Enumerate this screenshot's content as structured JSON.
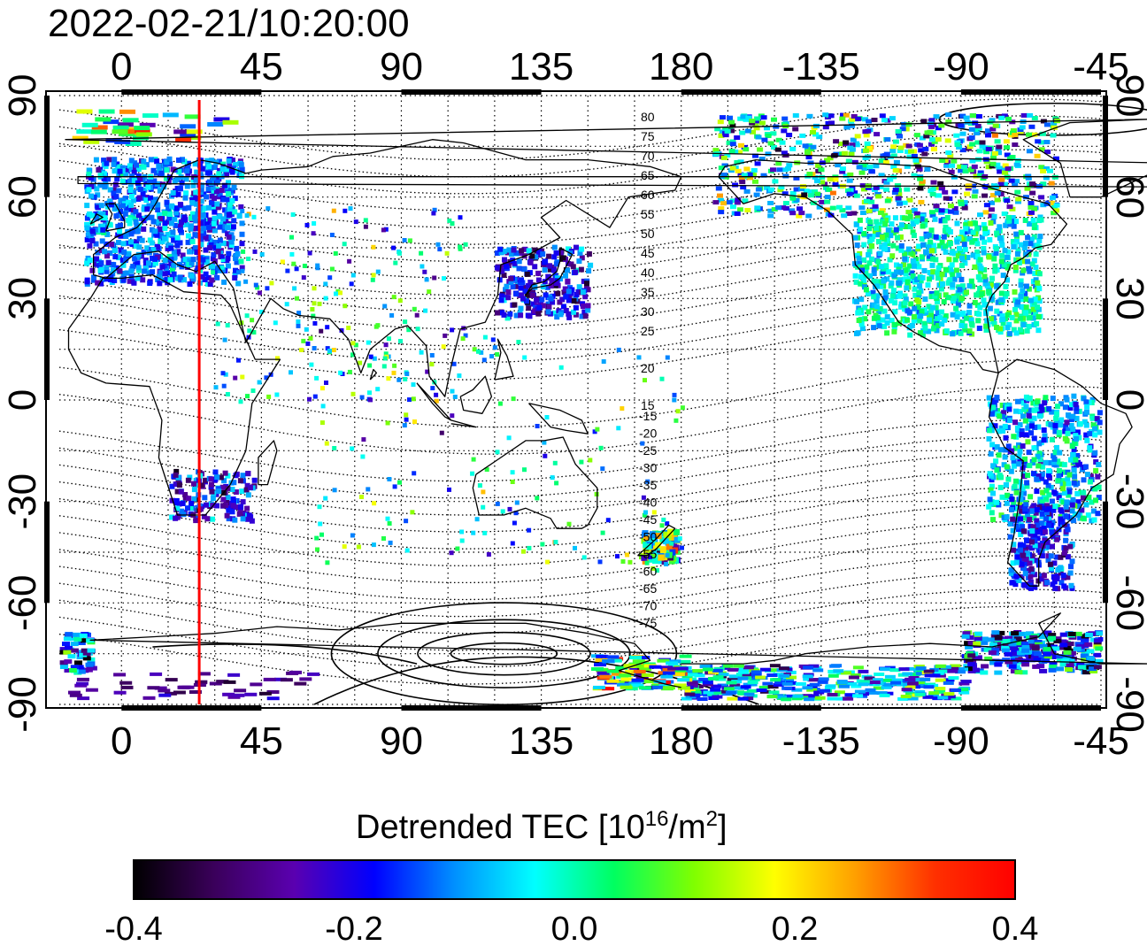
{
  "title": "2022-02-21/10:20:00",
  "map": {
    "lon_ticks": [
      "0",
      "45",
      "90",
      "135",
      "180",
      "-135",
      "-90",
      "-45"
    ],
    "lat_ticks": [
      "90",
      "60",
      "30",
      "0",
      "-30",
      "-60",
      "-90"
    ],
    "lon_range": [
      -20,
      315
    ],
    "lat_range": [
      -90,
      90
    ],
    "grid": "dotted, 15 degree spacing",
    "marker_line": {
      "longitude": 25,
      "color": "#ff0000"
    },
    "magnetic_labels_north": [
      "80",
      "75",
      "70",
      "65",
      "60",
      "55",
      "50",
      "45",
      "40",
      "35",
      "30",
      "25",
      "20",
      "15"
    ],
    "magnetic_labels_south": [
      "-15",
      "-20",
      "-25",
      "-30",
      "-35",
      "-40",
      "-45",
      "-50",
      "-55",
      "-60",
      "-65",
      "-70",
      "-75"
    ]
  },
  "colorbar": {
    "title_main": "Detrended TEC  [10",
    "title_exp1": "16",
    "title_mid": "/m",
    "title_exp2": "2",
    "title_end": "]",
    "min": -0.4,
    "max": 0.4,
    "ticks": [
      "-0.4",
      "-0.2",
      "0.0",
      "0.2",
      "0.4"
    ],
    "colors": [
      "#000000",
      "#3a005a",
      "#5a00b0",
      "#0000ff",
      "#0090ff",
      "#00ffff",
      "#00ff60",
      "#80ff00",
      "#ffff00",
      "#ffa000",
      "#ff3000",
      "#ff0000"
    ]
  }
}
